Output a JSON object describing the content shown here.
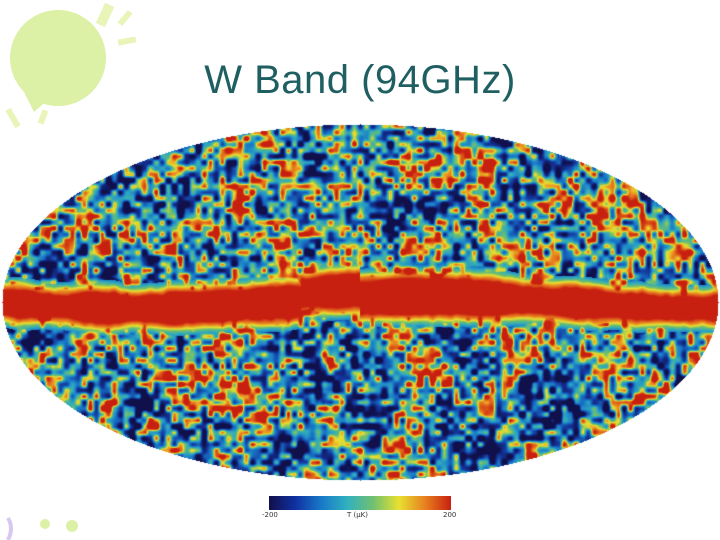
{
  "slide": {
    "title": "W Band (94GHz)"
  },
  "skymap": {
    "description_colors": {
      "low": "#10105a",
      "mid": "#2a9ac8",
      "high": "#e8d020",
      "peak": "#c02010"
    }
  },
  "colorbar": {
    "min_label": "-200",
    "unit_label": "T (μK)",
    "max_label": "200",
    "stops": [
      "#10104a",
      "#1030a0",
      "#1878c8",
      "#30b0c0",
      "#70c070",
      "#e8e030",
      "#e88020",
      "#c82010"
    ]
  },
  "colors": {
    "title": "#1f5f62",
    "decor_green": "#d8ef9e"
  }
}
